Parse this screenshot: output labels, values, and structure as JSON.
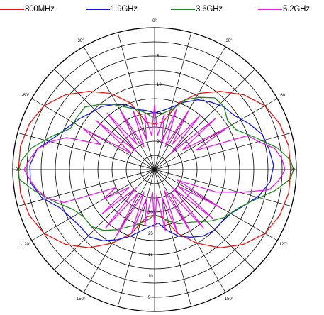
{
  "legend": [
    {
      "label": "800MHz",
      "color": "#e8130f"
    },
    {
      "label": "1.9GHz",
      "color": "#1212e6"
    },
    {
      "label": "3.6GHz",
      "color": "#1b8a1b"
    },
    {
      "label": "5.2GHz",
      "color": "#e61ee6"
    }
  ],
  "chart_data": {
    "type": "polar",
    "title": "",
    "angle_ticks": [
      {
        "deg": 0,
        "label": "0°"
      },
      {
        "deg": 30,
        "label": "30°"
      },
      {
        "deg": 60,
        "label": "60°"
      },
      {
        "deg": 90,
        "label": "90"
      },
      {
        "deg": 120,
        "label": "120°"
      },
      {
        "deg": 150,
        "label": "150°"
      },
      {
        "deg": 180,
        "label": "180°"
      },
      {
        "deg": -150,
        "label": "-150°"
      },
      {
        "deg": -120,
        "label": "-120°"
      },
      {
        "deg": -90,
        "label": "-90"
      },
      {
        "deg": -60,
        "label": "-60°"
      },
      {
        "deg": -30,
        "label": "-30°"
      }
    ],
    "radial_ticks_top": [
      "5",
      "10",
      "15",
      "20"
    ],
    "radial_ticks_bottom": [
      "20",
      "25",
      "15",
      "10",
      "5"
    ],
    "rlim": [
      0,
      50
    ],
    "grid": true,
    "series": [
      {
        "name": "800MHz",
        "color": "#e8130f",
        "points": [
          [
            0,
            16
          ],
          [
            10,
            17
          ],
          [
            20,
            25
          ],
          [
            30,
            31
          ],
          [
            40,
            36
          ],
          [
            50,
            41
          ],
          [
            60,
            45
          ],
          [
            70,
            47
          ],
          [
            80,
            48
          ],
          [
            90,
            48
          ],
          [
            100,
            48
          ],
          [
            110,
            47
          ],
          [
            120,
            45
          ],
          [
            130,
            41
          ],
          [
            140,
            36
          ],
          [
            150,
            30
          ],
          [
            160,
            24
          ],
          [
            170,
            17
          ],
          [
            180,
            16
          ],
          [
            190,
            17
          ],
          [
            200,
            24
          ],
          [
            210,
            30
          ],
          [
            220,
            36
          ],
          [
            230,
            41
          ],
          [
            240,
            45
          ],
          [
            250,
            47
          ],
          [
            260,
            48
          ],
          [
            270,
            48
          ],
          [
            280,
            48
          ],
          [
            290,
            47
          ],
          [
            300,
            45
          ],
          [
            310,
            41
          ],
          [
            320,
            36
          ],
          [
            330,
            31
          ],
          [
            340,
            25
          ],
          [
            350,
            17
          ],
          [
            360,
            16
          ]
        ]
      },
      {
        "name": "1.9GHz",
        "color": "#1212e6",
        "points": [
          [
            0,
            20
          ],
          [
            8,
            21
          ],
          [
            16,
            23
          ],
          [
            24,
            26
          ],
          [
            32,
            29
          ],
          [
            40,
            31
          ],
          [
            48,
            33
          ],
          [
            56,
            34
          ],
          [
            64,
            37
          ],
          [
            72,
            40
          ],
          [
            80,
            41
          ],
          [
            88,
            42
          ],
          [
            96,
            41
          ],
          [
            104,
            38
          ],
          [
            112,
            34
          ],
          [
            120,
            31
          ],
          [
            128,
            30
          ],
          [
            136,
            30
          ],
          [
            144,
            29
          ],
          [
            152,
            27
          ],
          [
            160,
            25
          ],
          [
            168,
            22
          ],
          [
            176,
            19
          ],
          [
            184,
            20
          ],
          [
            192,
            22
          ],
          [
            200,
            25
          ],
          [
            208,
            28
          ],
          [
            216,
            31
          ],
          [
            224,
            33
          ],
          [
            232,
            33
          ],
          [
            240,
            34
          ],
          [
            248,
            36
          ],
          [
            256,
            41
          ],
          [
            264,
            44
          ],
          [
            272,
            44
          ],
          [
            280,
            42
          ],
          [
            288,
            37
          ],
          [
            296,
            34
          ],
          [
            304,
            32
          ],
          [
            312,
            30
          ],
          [
            320,
            29
          ],
          [
            328,
            27
          ],
          [
            336,
            25
          ],
          [
            344,
            22
          ],
          [
            352,
            21
          ],
          [
            360,
            20
          ]
        ]
      },
      {
        "name": "3.6GHz",
        "color": "#1b8a1b",
        "points": [
          [
            0,
            18
          ],
          [
            8,
            20
          ],
          [
            16,
            22
          ],
          [
            24,
            27
          ],
          [
            32,
            30
          ],
          [
            40,
            33
          ],
          [
            48,
            33
          ],
          [
            56,
            31
          ],
          [
            64,
            32
          ],
          [
            72,
            37
          ],
          [
            80,
            44
          ],
          [
            86,
            48
          ],
          [
            90,
            49
          ],
          [
            94,
            48
          ],
          [
            100,
            43
          ],
          [
            108,
            36
          ],
          [
            116,
            32
          ],
          [
            124,
            30
          ],
          [
            132,
            27
          ],
          [
            140,
            24
          ],
          [
            148,
            22
          ],
          [
            156,
            21
          ],
          [
            164,
            19
          ],
          [
            172,
            17
          ],
          [
            180,
            16
          ],
          [
            188,
            18
          ],
          [
            196,
            20
          ],
          [
            204,
            22
          ],
          [
            212,
            25
          ],
          [
            220,
            28
          ],
          [
            228,
            30
          ],
          [
            236,
            30
          ],
          [
            244,
            32
          ],
          [
            252,
            37
          ],
          [
            260,
            43
          ],
          [
            266,
            48
          ],
          [
            270,
            48
          ],
          [
            274,
            47
          ],
          [
            280,
            44
          ],
          [
            288,
            38
          ],
          [
            296,
            33
          ],
          [
            304,
            33
          ],
          [
            312,
            33
          ],
          [
            320,
            30
          ],
          [
            328,
            27
          ],
          [
            336,
            24
          ],
          [
            344,
            22
          ],
          [
            352,
            20
          ],
          [
            360,
            18
          ]
        ]
      },
      {
        "name": "5.2GHz",
        "color": "#e61ee6",
        "points": [
          [
            0,
            23
          ],
          [
            5,
            12
          ],
          [
            10,
            20
          ],
          [
            15,
            10
          ],
          [
            20,
            23
          ],
          [
            25,
            9
          ],
          [
            30,
            24
          ],
          [
            35,
            11
          ],
          [
            40,
            25
          ],
          [
            45,
            8
          ],
          [
            50,
            28
          ],
          [
            55,
            12
          ],
          [
            60,
            30
          ],
          [
            65,
            16
          ],
          [
            70,
            35
          ],
          [
            75,
            38
          ],
          [
            80,
            43
          ],
          [
            85,
            45
          ],
          [
            90,
            46
          ],
          [
            95,
            44
          ],
          [
            100,
            41
          ],
          [
            105,
            31
          ],
          [
            110,
            23
          ],
          [
            115,
            9
          ],
          [
            120,
            27
          ],
          [
            125,
            10
          ],
          [
            130,
            27
          ],
          [
            135,
            9
          ],
          [
            140,
            27
          ],
          [
            145,
            10
          ],
          [
            150,
            25
          ],
          [
            155,
            8
          ],
          [
            160,
            24
          ],
          [
            165,
            10
          ],
          [
            170,
            22
          ],
          [
            175,
            9
          ],
          [
            180,
            21
          ],
          [
            185,
            8
          ],
          [
            190,
            20
          ],
          [
            195,
            10
          ],
          [
            200,
            24
          ],
          [
            205,
            9
          ],
          [
            210,
            27
          ],
          [
            215,
            10
          ],
          [
            220,
            27
          ],
          [
            225,
            9
          ],
          [
            230,
            24
          ],
          [
            235,
            11
          ],
          [
            240,
            21
          ],
          [
            245,
            15
          ],
          [
            250,
            34
          ],
          [
            255,
            39
          ],
          [
            260,
            42
          ],
          [
            265,
            44
          ],
          [
            270,
            46
          ],
          [
            275,
            44
          ],
          [
            280,
            42
          ],
          [
            285,
            38
          ],
          [
            290,
            33
          ],
          [
            295,
            21
          ],
          [
            300,
            29
          ],
          [
            305,
            10
          ],
          [
            310,
            27
          ],
          [
            315,
            9
          ],
          [
            320,
            26
          ],
          [
            325,
            11
          ],
          [
            330,
            24
          ],
          [
            335,
            9
          ],
          [
            340,
            22
          ],
          [
            345,
            11
          ],
          [
            350,
            20
          ],
          [
            355,
            12
          ],
          [
            360,
            23
          ]
        ]
      }
    ]
  }
}
